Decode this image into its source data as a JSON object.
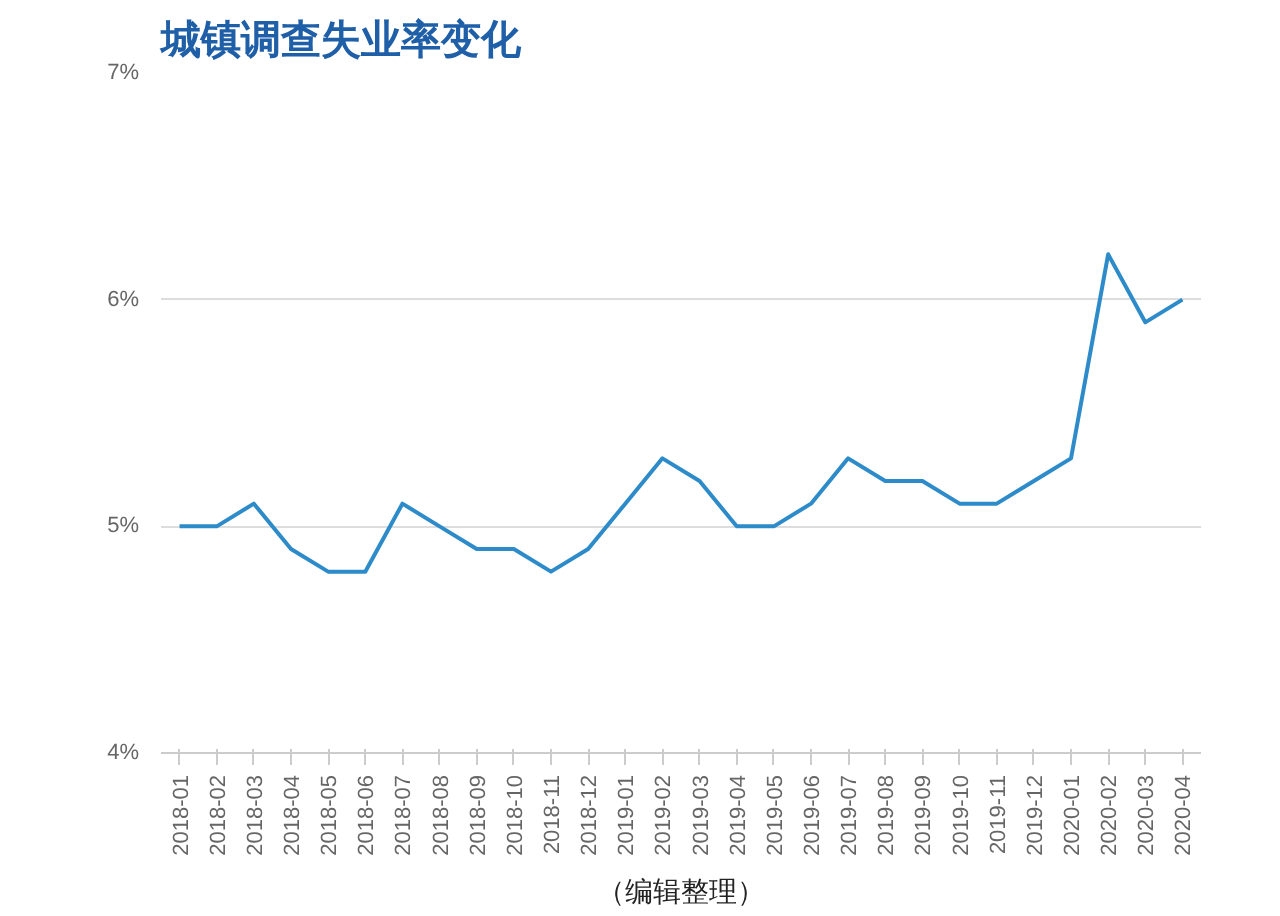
{
  "chart_data": {
    "type": "line",
    "title": "城镇调查失业率变化",
    "categories": [
      "2018-01",
      "2018-02",
      "2018-03",
      "2018-04",
      "2018-05",
      "2018-06",
      "2018-07",
      "2018-08",
      "2018-09",
      "2018-10",
      "2018-11",
      "2018-12",
      "2019-01",
      "2019-02",
      "2019-03",
      "2019-04",
      "2019-05",
      "2019-06",
      "2019-07",
      "2019-08",
      "2019-09",
      "2019-10",
      "2019-11",
      "2019-12",
      "2020-01",
      "2020-02",
      "2020-03",
      "2020-04"
    ],
    "series": [
      {
        "color": "#2e8bc9",
        "values": [
          5.0,
          5.0,
          5.1,
          4.9,
          4.8,
          4.8,
          5.1,
          5.0,
          4.9,
          4.9,
          4.8,
          4.9,
          5.1,
          5.3,
          5.2,
          5.0,
          5.0,
          5.1,
          5.3,
          5.2,
          5.2,
          5.1,
          5.1,
          5.2,
          5.3,
          6.2,
          5.9,
          6.0
        ]
      }
    ],
    "ylim": [
      4,
      7
    ],
    "yticks": [
      {
        "value": 4,
        "label": "4%"
      },
      {
        "value": 5,
        "label": "5%"
      },
      {
        "value": 6,
        "label": "6%"
      },
      {
        "value": 7,
        "label": "7%"
      }
    ],
    "grid": "y",
    "marker": "none",
    "line_style": "solid",
    "annotations": [
      "（编辑整理）"
    ]
  }
}
